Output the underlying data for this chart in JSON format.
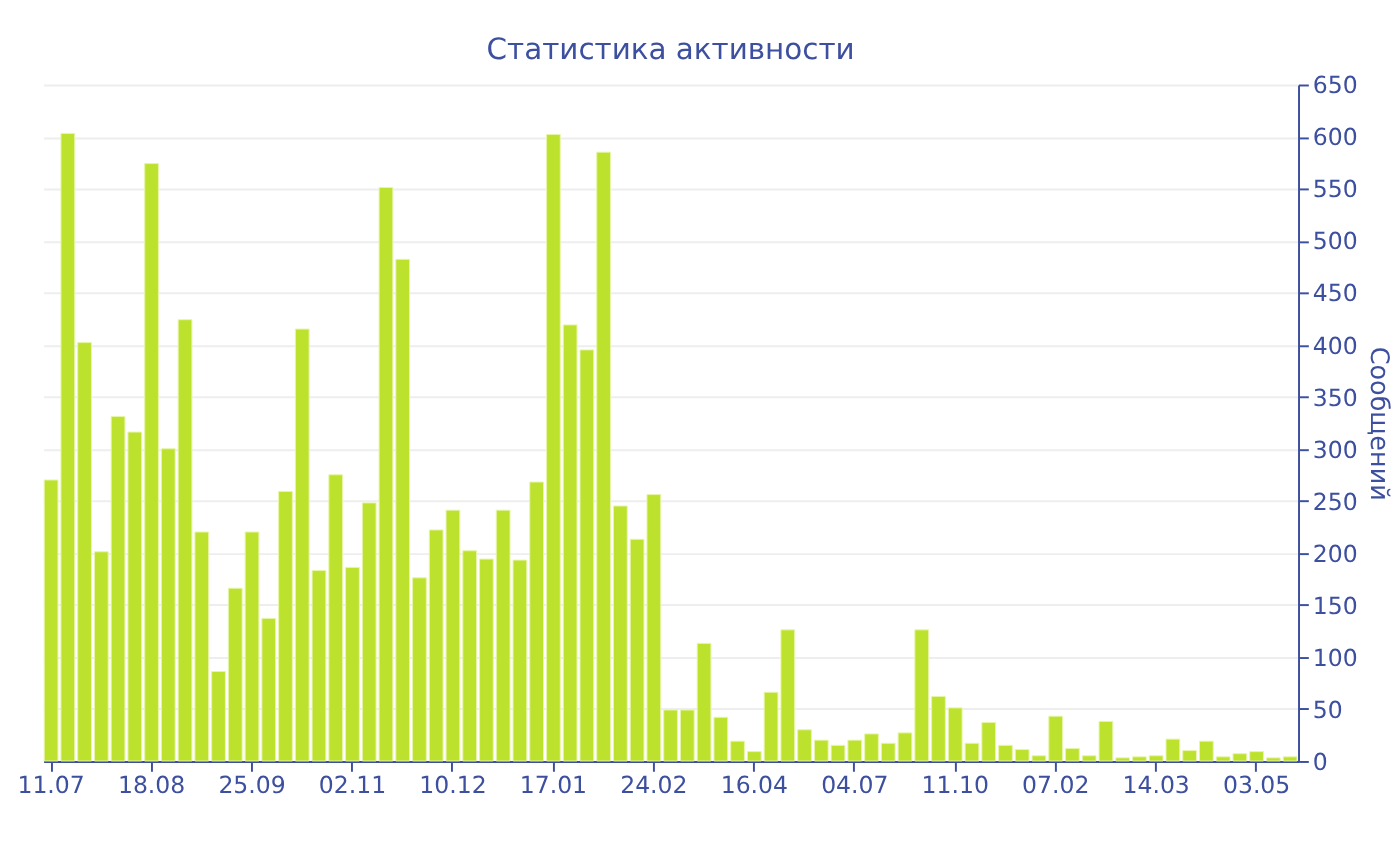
{
  "chart_data": {
    "type": "bar",
    "title": "Статистика активности",
    "ylabel": "Сообщений",
    "categories": [
      "11.07",
      null,
      null,
      null,
      null,
      null,
      "18.08",
      null,
      null,
      null,
      null,
      null,
      "25.09",
      null,
      null,
      null,
      null,
      null,
      "02.11",
      null,
      null,
      null,
      null,
      null,
      "10.12",
      null,
      null,
      null,
      null,
      null,
      "17.01",
      null,
      null,
      null,
      null,
      null,
      "24.02",
      null,
      null,
      null,
      null,
      null,
      "16.04",
      null,
      null,
      null,
      null,
      null,
      "04.07",
      null,
      null,
      null,
      null,
      null,
      "11.10",
      null,
      null,
      null,
      null,
      null,
      "07.02",
      null,
      null,
      null,
      null,
      null,
      "14.03",
      null,
      null,
      null,
      null,
      null,
      "03.05",
      null,
      null
    ],
    "values": [
      270,
      603,
      402,
      201,
      331,
      316,
      574,
      300,
      424,
      220,
      86,
      166,
      220,
      137,
      259,
      415,
      183,
      275,
      186,
      248,
      551,
      482,
      176,
      222,
      241,
      202,
      194,
      241,
      193,
      268,
      602,
      419,
      395,
      585,
      245,
      213,
      256,
      49,
      49,
      113,
      42,
      19,
      9,
      66,
      126,
      30,
      20,
      15,
      20,
      26,
      17,
      27,
      126,
      62,
      51,
      17,
      37,
      15,
      11,
      5,
      43,
      12,
      5,
      38,
      3,
      4,
      5,
      21,
      10,
      19,
      4,
      7,
      9,
      3,
      4
    ],
    "color": "#bde22e",
    "ylim": [
      0,
      650
    ],
    "yticks": [
      0,
      50,
      100,
      150,
      200,
      250,
      300,
      350,
      400,
      450,
      500,
      550,
      600,
      650
    ],
    "grid": "y"
  }
}
